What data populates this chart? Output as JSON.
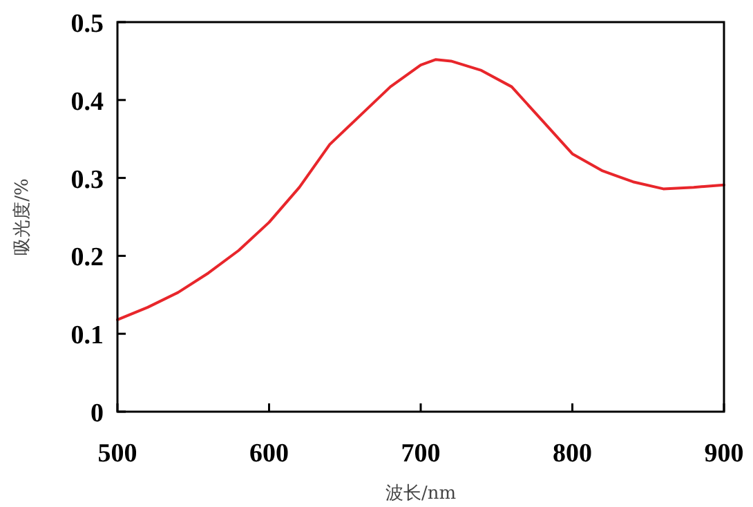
{
  "chart_data": {
    "type": "line",
    "xlabel": "波长/nm",
    "ylabel": "吸光度/%",
    "x": [
      500,
      520,
      540,
      560,
      580,
      600,
      620,
      640,
      660,
      680,
      700,
      710,
      720,
      740,
      760,
      780,
      800,
      820,
      840,
      860,
      880,
      900
    ],
    "series": [
      {
        "color": "#e8262b",
        "values": [
          0.118,
          0.134,
          0.153,
          0.178,
          0.207,
          0.243,
          0.288,
          0.343,
          0.38,
          0.417,
          0.445,
          0.452,
          0.45,
          0.438,
          0.417,
          0.374,
          0.331,
          0.309,
          0.295,
          0.286,
          0.288,
          0.291
        ]
      }
    ],
    "xlim": [
      500,
      900
    ],
    "ylim": [
      0,
      0.5
    ],
    "xticks": [
      500,
      600,
      700,
      800,
      900
    ],
    "yticks": [
      0,
      0.1,
      0.2,
      0.3,
      0.4,
      0.5
    ],
    "grid": false,
    "marker": "none",
    "line_style": "solid"
  }
}
